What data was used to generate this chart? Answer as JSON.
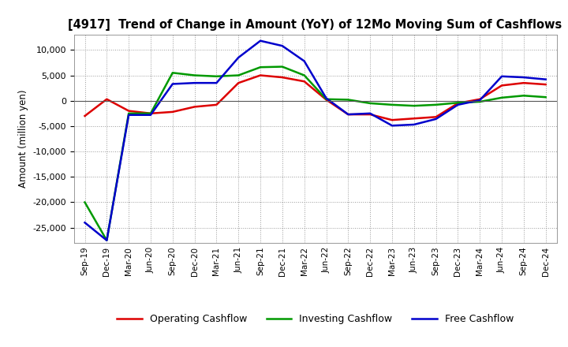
{
  "title": "[4917]  Trend of Change in Amount (YoY) of 12Mo Moving Sum of Cashflows",
  "ylabel": "Amount (million yen)",
  "labels": [
    "Sep-19",
    "Dec-19",
    "Mar-20",
    "Jun-20",
    "Sep-20",
    "Dec-20",
    "Mar-21",
    "Jun-21",
    "Sep-21",
    "Dec-21",
    "Mar-22",
    "Jun-22",
    "Sep-22",
    "Dec-22",
    "Mar-23",
    "Jun-23",
    "Sep-23",
    "Dec-23",
    "Mar-24",
    "Jun-24",
    "Sep-24",
    "Dec-24"
  ],
  "operating": [
    -3000,
    300,
    -2000,
    -2500,
    -2200,
    -1200,
    -800,
    3500,
    5000,
    4600,
    3800,
    200,
    -2700,
    -2700,
    -3800,
    -3500,
    -3200,
    -500,
    300,
    3000,
    3500,
    3200
  ],
  "investing": [
    -20000,
    -27500,
    -2500,
    -2500,
    5500,
    5000,
    4800,
    5000,
    6600,
    6700,
    5000,
    300,
    200,
    -500,
    -800,
    -1000,
    -800,
    -400,
    -200,
    600,
    1000,
    700
  ],
  "free": [
    -24000,
    -27500,
    -2800,
    -2800,
    3300,
    3500,
    3500,
    8500,
    11800,
    10800,
    7800,
    500,
    -2700,
    -2500,
    -4900,
    -4700,
    -3600,
    -800,
    100,
    4800,
    4600,
    4200
  ],
  "operating_color": "#dd0000",
  "investing_color": "#009900",
  "free_color": "#0000cc",
  "background_color": "#ffffff",
  "grid_color": "#999999",
  "ylim": [
    -28000,
    13000
  ],
  "yticks": [
    -25000,
    -20000,
    -15000,
    -10000,
    -5000,
    0,
    5000,
    10000
  ],
  "line_width": 1.8
}
